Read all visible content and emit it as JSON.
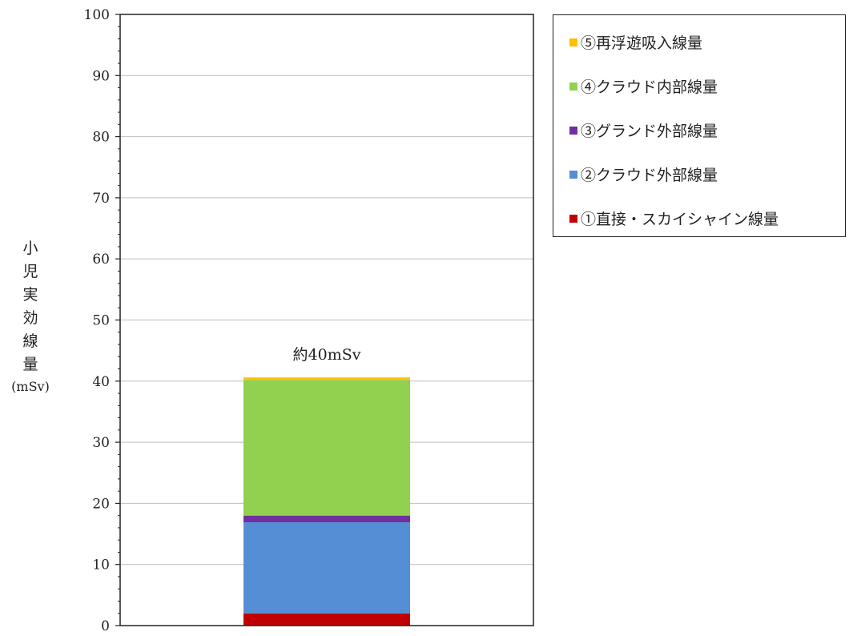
{
  "chart_data": {
    "type": "bar",
    "stacked": true,
    "categories": [
      ""
    ],
    "ylim": [
      0,
      100
    ],
    "yticks": [
      0,
      10,
      20,
      30,
      40,
      50,
      60,
      70,
      80,
      90,
      100
    ],
    "ylabel": "小児実効線量",
    "ylabel_unit": "(mSv)",
    "grid": true,
    "legend_position": "top-right",
    "series": [
      {
        "name": "①直接・スカイシャイン線量",
        "values": [
          2.0
        ],
        "color": "#c00000"
      },
      {
        "name": "②クラウド外部線量",
        "values": [
          14.9
        ],
        "color": "#558ed5"
      },
      {
        "name": "③グランド外部線量",
        "values": [
          1.1
        ],
        "color": "#7030a0"
      },
      {
        "name": "④クラウド内部線量",
        "values": [
          22.2
        ],
        "color": "#92d050"
      },
      {
        "name": "⑤再浮遊吸入線量",
        "values": [
          0.4
        ],
        "color": "#ffc000"
      }
    ],
    "total_label": "約40mSv"
  }
}
